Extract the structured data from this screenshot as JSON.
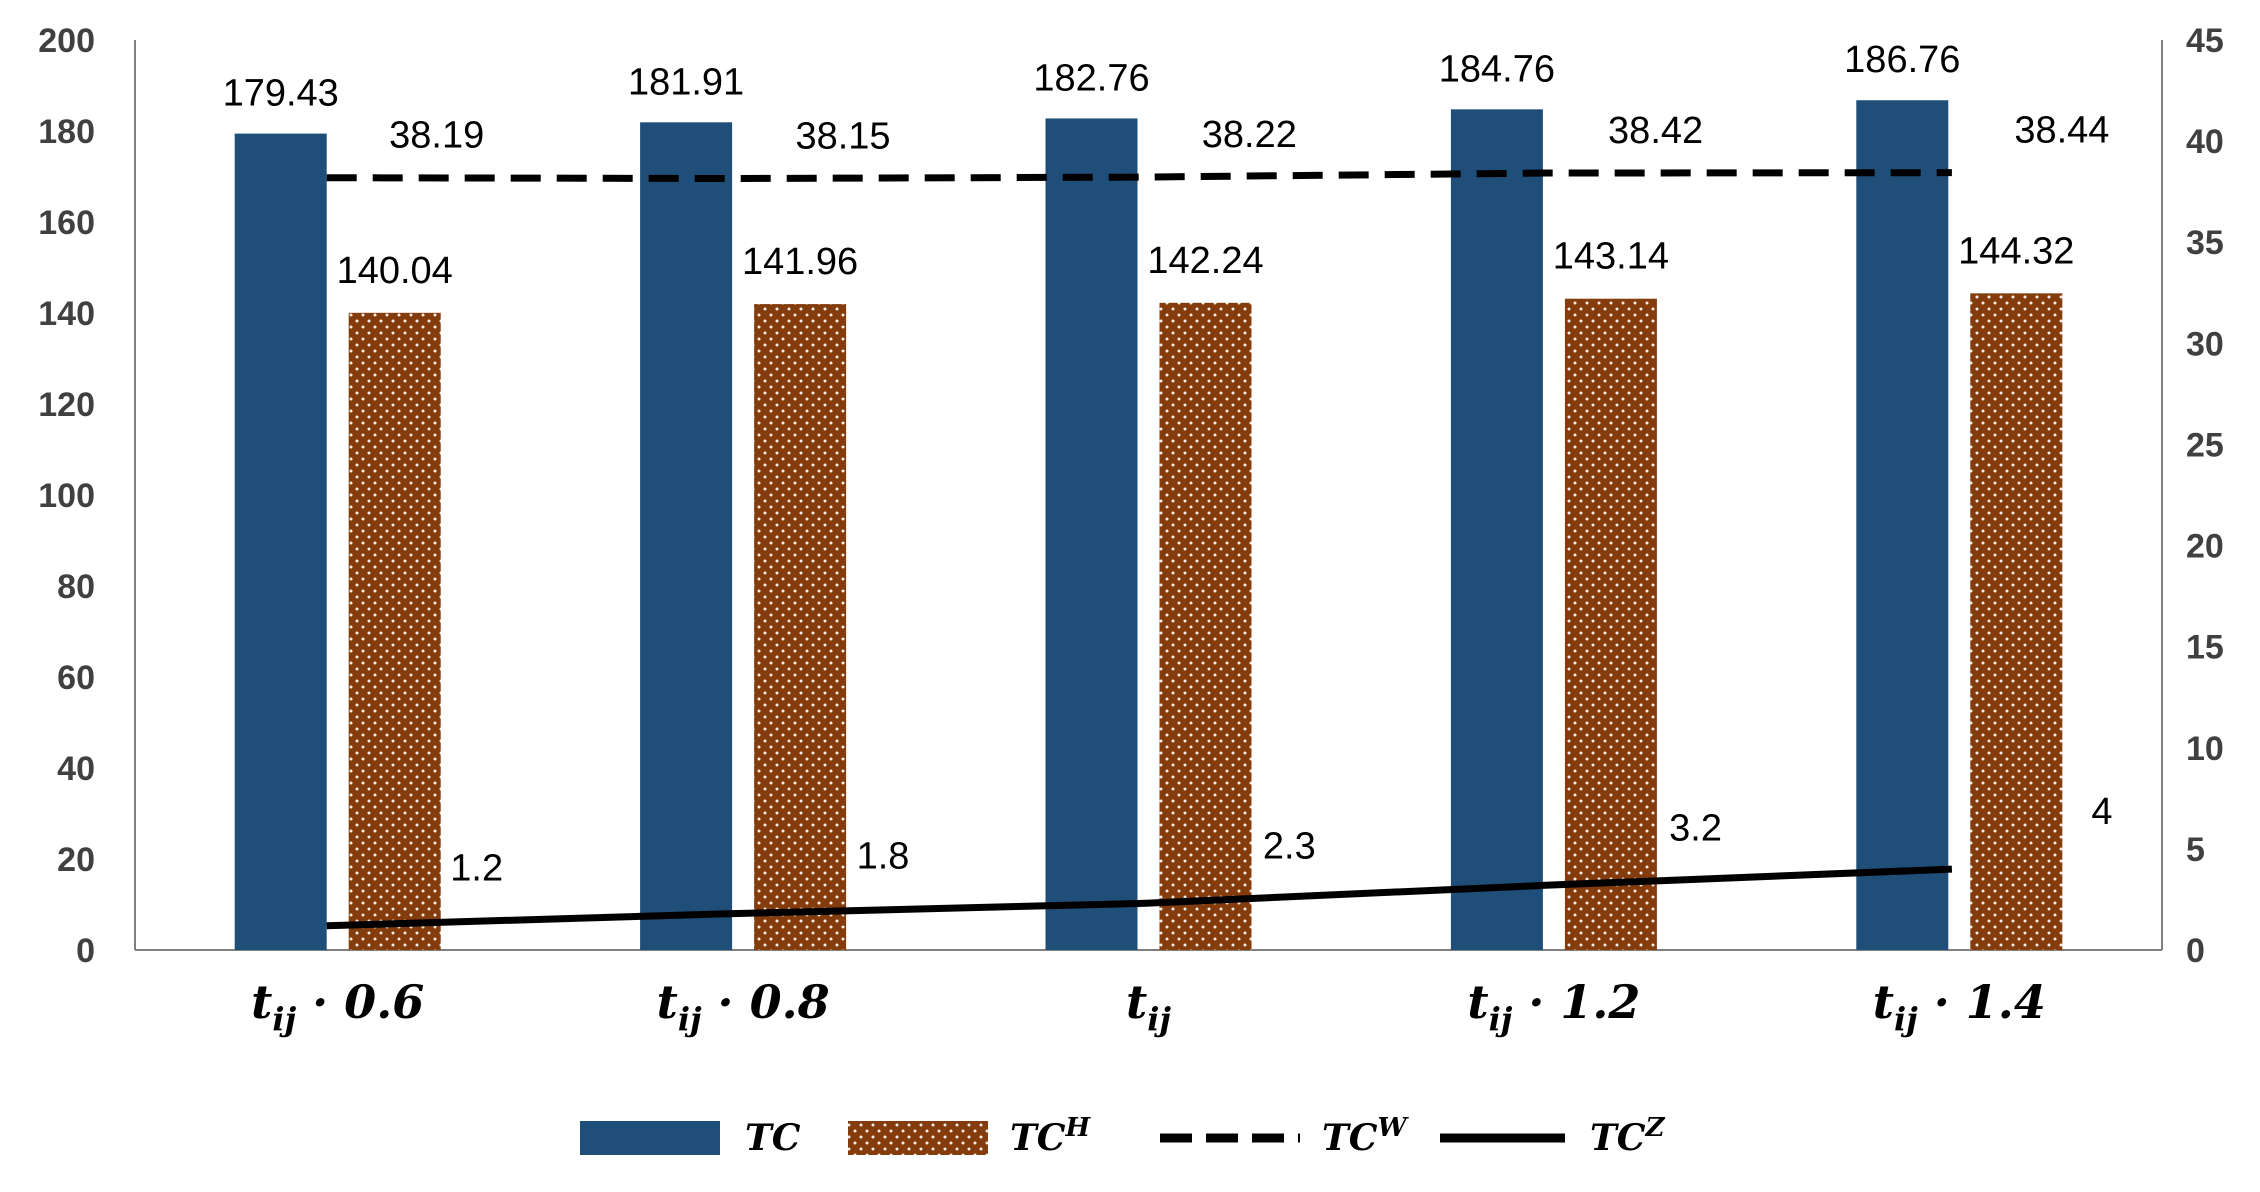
{
  "chart_data": {
    "type": "bar",
    "categories": [
      "tij · 0.6",
      "tij · 0.8",
      "tij",
      "tij · 1.2",
      "tij · 1.4"
    ],
    "category_labels": [
      {
        "base": "t",
        "sub": "ij",
        "suffix": " · 0.6"
      },
      {
        "base": "t",
        "sub": "ij",
        "suffix": " · 0.8"
      },
      {
        "base": "t",
        "sub": "ij",
        "suffix": ""
      },
      {
        "base": "t",
        "sub": "ij",
        "suffix": " · 1.2"
      },
      {
        "base": "t",
        "sub": "ij",
        "suffix": " · 1.4"
      }
    ],
    "series": [
      {
        "name": "TC",
        "base": "TC",
        "sup": "",
        "kind": "bar",
        "axis": "left",
        "color": "#1F4E79",
        "values": [
          179.43,
          181.91,
          182.76,
          184.76,
          186.76
        ],
        "labels": [
          "179.43",
          "181.91",
          "182.76",
          "184.76",
          "186.76"
        ]
      },
      {
        "name": "TC^H",
        "base": "TC",
        "sup": "H",
        "kind": "bar",
        "axis": "left",
        "color": "#843C0C",
        "pattern": "dotted",
        "values": [
          140.04,
          141.96,
          142.24,
          143.14,
          144.32
        ],
        "labels": [
          "140.04",
          "141.96",
          "142.24",
          "143.14",
          "144.32"
        ]
      },
      {
        "name": "TC^W",
        "base": "TC",
        "sup": "W",
        "kind": "line",
        "style": "dashed",
        "axis": "right",
        "color": "#000000",
        "values": [
          38.19,
          38.15,
          38.22,
          38.42,
          38.44
        ],
        "labels": [
          "38.19",
          "38.15",
          "38.22",
          "38.42",
          "38.44"
        ]
      },
      {
        "name": "TC^Z",
        "base": "TC",
        "sup": "Z",
        "kind": "line",
        "style": "solid",
        "axis": "right",
        "color": "#000000",
        "values": [
          1.2,
          1.8,
          2.3,
          3.2,
          4
        ],
        "labels": [
          "1.2",
          "1.8",
          "2.3",
          "3.2",
          "4"
        ]
      }
    ],
    "y_left": {
      "min": 0,
      "max": 200,
      "step": 20,
      "ticks": [
        "0",
        "20",
        "40",
        "60",
        "80",
        "100",
        "120",
        "140",
        "160",
        "180",
        "200"
      ]
    },
    "y_right": {
      "min": 0,
      "max": 45,
      "step": 5,
      "ticks": [
        "0",
        "5",
        "10",
        "15",
        "20",
        "25",
        "30",
        "35",
        "40",
        "45"
      ]
    },
    "grid": false,
    "legend_position": "bottom",
    "title": "",
    "xlabel": "",
    "ylabel": ""
  }
}
